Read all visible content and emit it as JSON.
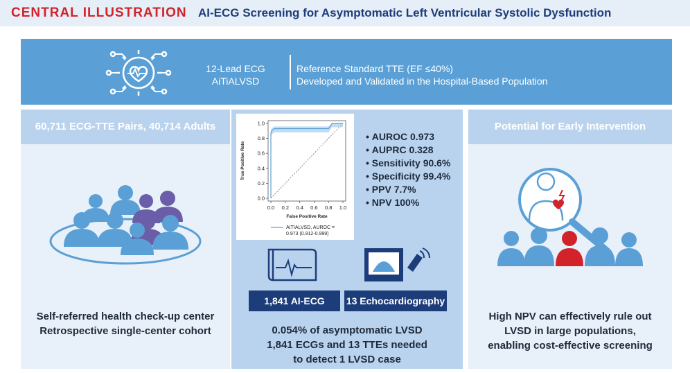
{
  "header": {
    "tag": "CENTRAL ILLUSTRATION",
    "title": "AI-ECG Screening for Asymptomatic Left Ventricular Systolic Dysfunction"
  },
  "top_band": {
    "model_line1": "12-Lead ECG",
    "model_line2": "AiTiALVSD",
    "desc_line1": "Reference Standard TTE (EF ≤40%)",
    "desc_line2": "Developed and Validated in the Hospital-Based Population"
  },
  "left_panel": {
    "heading": "60,711 ECG-TTE Pairs, 40,714 Adults",
    "caption_line1": "Self-referred health check-up center",
    "caption_line2": "Retrospective single-center cohort"
  },
  "middle_panel": {
    "metrics": [
      "AUROC 0.973",
      "AUPRC 0.328",
      "Sensitivity 90.6%",
      "Specificity 99.4%",
      "PPV 7.7%",
      "NPV 100%"
    ],
    "ecg_chip": "1,841 AI-ECG",
    "echo_chip": "13 Echocardiography",
    "caption_line1": "0.054% of asymptomatic LVSD",
    "caption_line2": "1,841 ECGs and 13 TTEs needed",
    "caption_line3": "to detect 1 LVSD case"
  },
  "right_panel": {
    "heading": "Potential for Early Intervention",
    "caption_line1": "High NPV can effectively rule out",
    "caption_line2": "LVSD in large populations,",
    "caption_line3": "enabling cost-effective screening"
  },
  "colors": {
    "brand_red": "#d2232a",
    "navy": "#1d3d7a",
    "band_blue": "#5aa0d6",
    "people_blue": "#5aa0d6",
    "people_purple": "#6a5ea8"
  },
  "chart_data": {
    "type": "line",
    "xlabel": "False Positive Rate",
    "ylabel": "True Positive Rate",
    "xlim": [
      0.0,
      1.0
    ],
    "ylim": [
      0.0,
      1.0
    ],
    "x_ticks": [
      "0.0",
      "0.2",
      "0.4",
      "0.6",
      "0.8",
      "1.0"
    ],
    "y_ticks": [
      "0.0",
      "0.2",
      "0.4",
      "0.6",
      "0.8",
      "1.0"
    ],
    "series": [
      {
        "name": "AITIALVSD, AUROC = 0.973 (0.912-0.999)",
        "x": [
          0.0,
          0.0,
          0.01,
          0.02,
          0.05,
          0.2,
          0.5,
          0.8,
          0.85,
          1.0
        ],
        "y": [
          0.0,
          0.87,
          0.9,
          0.91,
          0.93,
          0.93,
          0.93,
          0.93,
          1.0,
          1.0
        ]
      }
    ],
    "reference_line": "diagonal",
    "legend": "bottom",
    "legend_label_line1": "AITIALVSD, AUROC =",
    "legend_label_line2": "0.973 (0.912-0.999)"
  }
}
